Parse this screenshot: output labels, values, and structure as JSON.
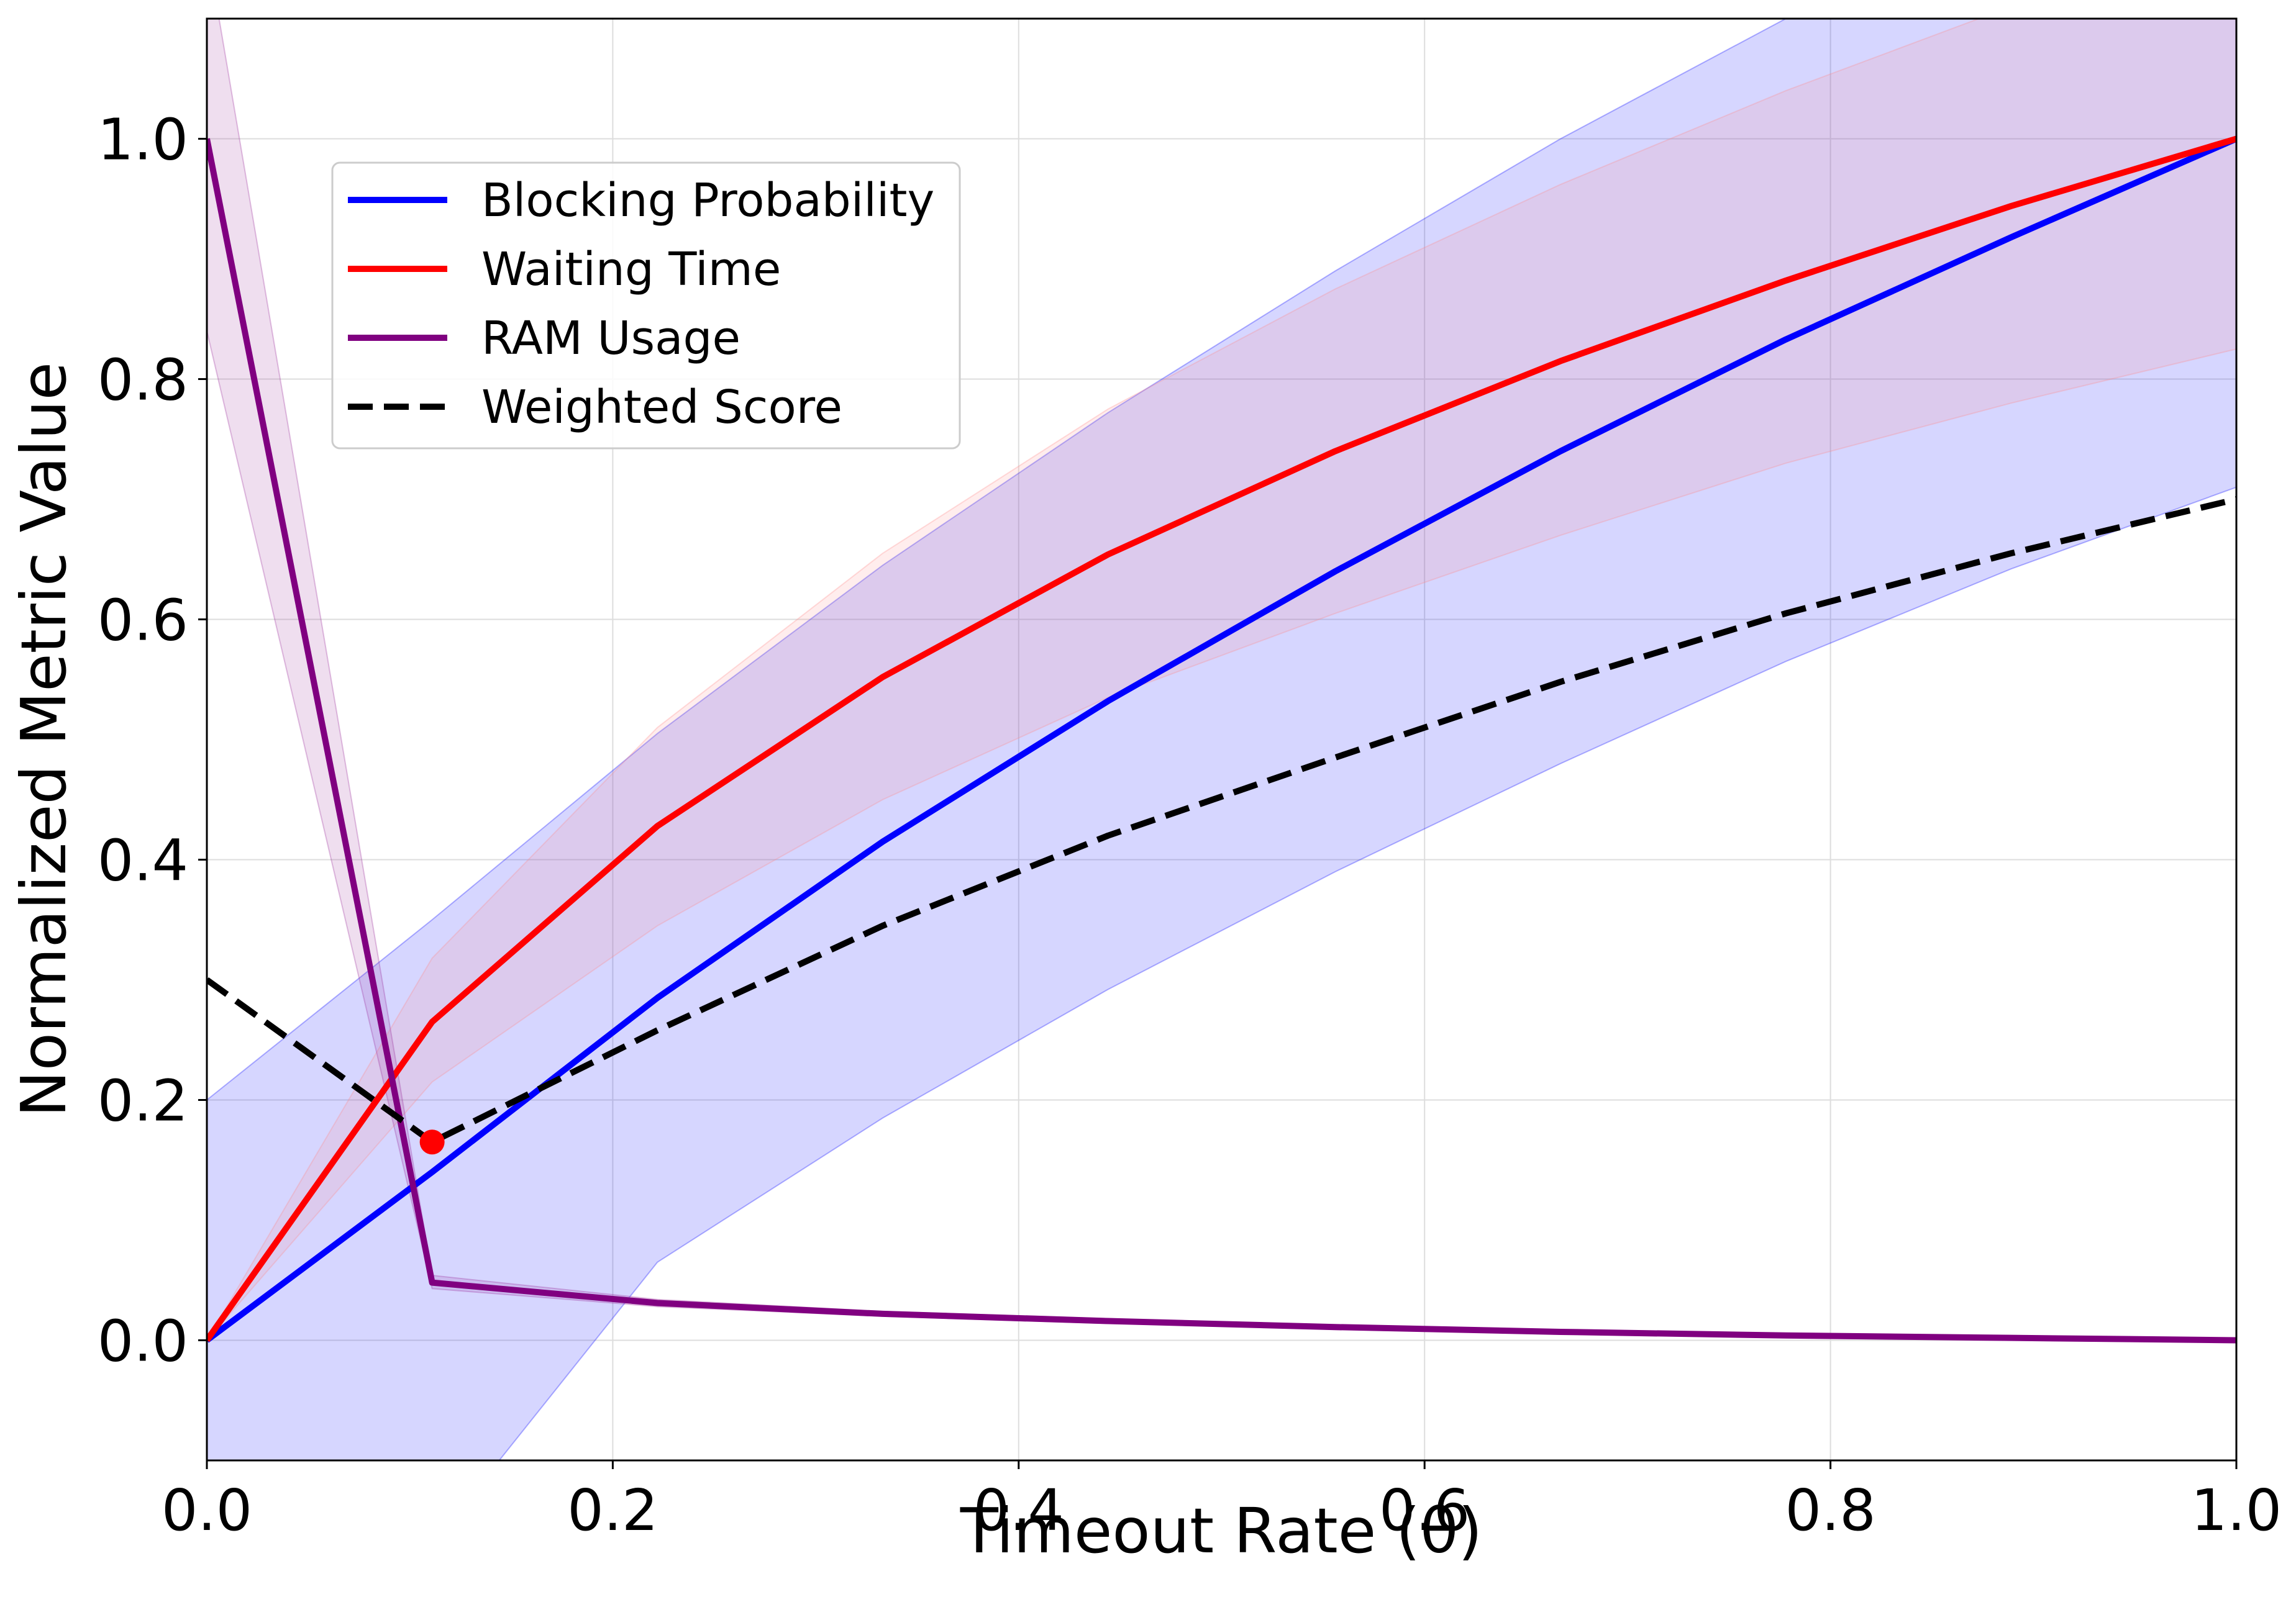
{
  "chart_data": {
    "type": "line",
    "xlabel": "Timeout Rate (θ)",
    "ylabel": "Normalized Metric Value",
    "xlim": [
      0.0,
      1.0
    ],
    "ylim": [
      -0.1,
      1.1
    ],
    "x_ticks": [
      "0.0",
      "0.2",
      "0.4",
      "0.6",
      "0.8",
      "1.0"
    ],
    "y_ticks": [
      "0.0",
      "0.2",
      "0.4",
      "0.6",
      "0.8",
      "1.0"
    ],
    "grid": true,
    "legend_position": "upper-left",
    "x": [
      0.0,
      0.111,
      0.222,
      0.333,
      0.444,
      0.556,
      0.667,
      0.778,
      0.889,
      1.0
    ],
    "series": [
      {
        "name": "Blocking Probability",
        "color": "#0000ff",
        "style": "solid",
        "values": [
          0.0,
          0.14,
          0.285,
          0.415,
          0.532,
          0.64,
          0.74,
          0.833,
          0.918,
          1.0
        ],
        "band_lower": [
          -0.2,
          -0.17,
          0.065,
          0.185,
          0.292,
          0.39,
          0.48,
          0.565,
          0.642,
          0.71
        ],
        "band_upper": [
          0.2,
          0.35,
          0.505,
          0.645,
          0.772,
          0.89,
          1.0,
          1.1,
          1.2,
          1.29
        ],
        "band_color": "#0000ff"
      },
      {
        "name": "Waiting Time",
        "color": "#ff0000",
        "style": "solid",
        "values": [
          0.0,
          0.265,
          0.428,
          0.552,
          0.654,
          0.74,
          0.815,
          0.882,
          0.944,
          1.0
        ],
        "band_lower": [
          0.0,
          0.215,
          0.345,
          0.45,
          0.535,
          0.605,
          0.67,
          0.73,
          0.78,
          0.825
        ],
        "band_upper": [
          0.0,
          0.318,
          0.51,
          0.655,
          0.775,
          0.875,
          0.962,
          1.04,
          1.11,
          1.175
        ],
        "band_color": "#ff8c8c"
      },
      {
        "name": "RAM Usage",
        "color": "#800080",
        "style": "solid",
        "values": [
          1.0,
          0.048,
          0.031,
          0.022,
          0.016,
          0.011,
          0.007,
          0.004,
          0.002,
          0.0
        ],
        "band_lower": [
          0.84,
          0.043,
          0.028,
          0.02,
          0.014,
          0.01,
          0.006,
          0.003,
          0.001,
          0.0
        ],
        "band_upper": [
          1.16,
          0.054,
          0.034,
          0.024,
          0.018,
          0.012,
          0.008,
          0.005,
          0.003,
          0.0
        ],
        "band_color": "#9b309b"
      },
      {
        "name": "Weighted Score",
        "color": "#000000",
        "style": "dashed",
        "values": [
          0.3,
          0.165,
          0.258,
          0.345,
          0.42,
          0.485,
          0.548,
          0.605,
          0.655,
          0.7
        ]
      }
    ],
    "optimum_marker": {
      "x": 0.111,
      "y": 0.165,
      "color": "#ff0000"
    }
  }
}
